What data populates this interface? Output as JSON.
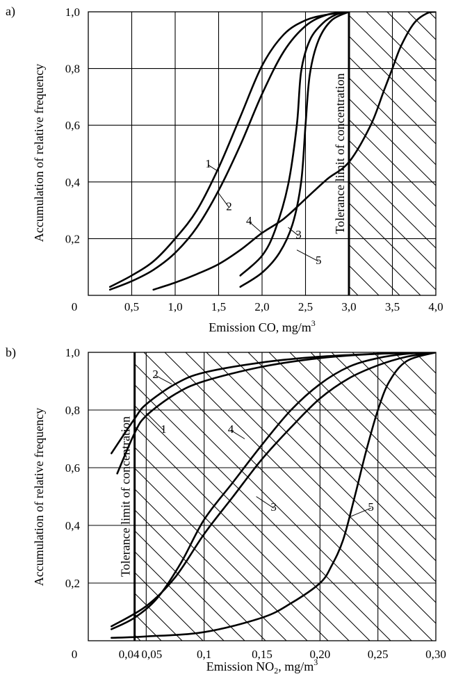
{
  "chart_data": [
    {
      "panel_label": "a)",
      "type": "line",
      "xlabel_main": "Emission CO, mg/m",
      "xlabel_sup": "3",
      "xlabel_sub": "",
      "xlabel_tail": "",
      "ylabel": "Accumulation of relative frequency",
      "origin_label": "0",
      "xlim": [
        0.0,
        4.0
      ],
      "ylim": [
        0.0,
        1.0
      ],
      "x_ticks": [
        {
          "v": 0.5,
          "t": "0,5"
        },
        {
          "v": 1.0,
          "t": "1,0"
        },
        {
          "v": 1.5,
          "t": "1,5"
        },
        {
          "v": 2.0,
          "t": "2,0"
        },
        {
          "v": 2.5,
          "t": "2,5"
        },
        {
          "v": 3.0,
          "t": "3,0"
        },
        {
          "v": 3.5,
          "t": "3,5"
        },
        {
          "v": 4.0,
          "t": "4,0"
        }
      ],
      "y_ticks": [
        {
          "v": 0.2,
          "t": "0,2"
        },
        {
          "v": 0.4,
          "t": "0,4"
        },
        {
          "v": 0.6,
          "t": "0,6"
        },
        {
          "v": 0.8,
          "t": "0,8"
        },
        {
          "v": 1.0,
          "t": "1,0"
        }
      ],
      "grid": true,
      "tolerance_limit": {
        "x": 3.0,
        "label": "Tolerance limit of concentration",
        "hatch_side": "right"
      },
      "series": [
        {
          "name": "1",
          "points": [
            [
              0.25,
              0.03
            ],
            [
              0.5,
              0.07
            ],
            [
              0.75,
              0.12
            ],
            [
              1.0,
              0.2
            ],
            [
              1.25,
              0.3
            ],
            [
              1.5,
              0.45
            ],
            [
              1.75,
              0.63
            ],
            [
              2.0,
              0.81
            ],
            [
              2.25,
              0.92
            ],
            [
              2.5,
              0.97
            ],
            [
              2.75,
              0.99
            ],
            [
              3.0,
              1.0
            ]
          ],
          "label": {
            "x": 1.38,
            "y": 0.46
          },
          "anchor": {
            "x": 1.48,
            "y": 0.44
          }
        },
        {
          "name": "2",
          "points": [
            [
              0.25,
              0.02
            ],
            [
              0.5,
              0.05
            ],
            [
              0.75,
              0.09
            ],
            [
              1.0,
              0.15
            ],
            [
              1.25,
              0.24
            ],
            [
              1.5,
              0.37
            ],
            [
              1.75,
              0.53
            ],
            [
              2.0,
              0.71
            ],
            [
              2.25,
              0.86
            ],
            [
              2.5,
              0.95
            ],
            [
              2.75,
              0.99
            ],
            [
              3.0,
              1.0
            ]
          ],
          "label": {
            "x": 1.62,
            "y": 0.31
          },
          "anchor": {
            "x": 1.5,
            "y": 0.36
          }
        },
        {
          "name": "3",
          "points": [
            [
              1.75,
              0.03
            ],
            [
              2.0,
              0.08
            ],
            [
              2.2,
              0.15
            ],
            [
              2.35,
              0.25
            ],
            [
              2.45,
              0.4
            ],
            [
              2.5,
              0.6
            ],
            [
              2.55,
              0.78
            ],
            [
              2.65,
              0.9
            ],
            [
              2.8,
              0.97
            ],
            [
              3.0,
              1.0
            ]
          ],
          "label": {
            "x": 2.42,
            "y": 0.21
          },
          "anchor": {
            "x": 2.3,
            "y": 0.24
          }
        },
        {
          "name": "4",
          "points": [
            [
              1.75,
              0.07
            ],
            [
              2.0,
              0.14
            ],
            [
              2.15,
              0.23
            ],
            [
              2.3,
              0.39
            ],
            [
              2.4,
              0.6
            ],
            [
              2.45,
              0.79
            ],
            [
              2.55,
              0.9
            ],
            [
              2.7,
              0.96
            ],
            [
              2.85,
              0.99
            ],
            [
              3.0,
              1.0
            ]
          ],
          "label": {
            "x": 1.85,
            "y": 0.26
          },
          "anchor": {
            "x": 2.0,
            "y": 0.22
          }
        },
        {
          "name": "5",
          "points": [
            [
              0.75,
              0.02
            ],
            [
              1.0,
              0.045
            ],
            [
              1.25,
              0.075
            ],
            [
              1.5,
              0.11
            ],
            [
              1.75,
              0.16
            ],
            [
              2.0,
              0.22
            ],
            [
              2.25,
              0.27
            ],
            [
              2.5,
              0.34
            ],
            [
              2.75,
              0.41
            ],
            [
              3.0,
              0.47
            ],
            [
              3.25,
              0.6
            ],
            [
              3.4,
              0.72
            ],
            [
              3.5,
              0.8
            ],
            [
              3.6,
              0.88
            ],
            [
              3.75,
              0.96
            ],
            [
              3.9,
              0.995
            ],
            [
              4.0,
              1.0
            ]
          ],
          "label": {
            "x": 2.65,
            "y": 0.12
          },
          "anchor": {
            "x": 2.4,
            "y": 0.16
          }
        }
      ]
    },
    {
      "panel_label": "b)",
      "type": "line",
      "xlabel_main": "Emission NO",
      "xlabel_sup": "3",
      "xlabel_sub": "2",
      "xlabel_tail": ", mg/m",
      "ylabel": "Accumulation of relative frequency",
      "origin_label": "0",
      "xlim": [
        0.0,
        0.3
      ],
      "ylim": [
        0.0,
        1.0
      ],
      "x_ticks": [
        {
          "v": 0.04,
          "t": "0,04"
        },
        {
          "v": 0.05,
          "t": "0,05"
        },
        {
          "v": 0.1,
          "t": "0,1"
        },
        {
          "v": 0.15,
          "t": "0,15"
        },
        {
          "v": 0.2,
          "t": "0,20"
        },
        {
          "v": 0.25,
          "t": "0,25"
        },
        {
          "v": 0.3,
          "t": "0,30"
        }
      ],
      "y_ticks": [
        {
          "v": 0.2,
          "t": "0,2"
        },
        {
          "v": 0.4,
          "t": "0,4"
        },
        {
          "v": 0.6,
          "t": "0,6"
        },
        {
          "v": 0.8,
          "t": "0,8"
        },
        {
          "v": 1.0,
          "t": "1,0"
        }
      ],
      "grid": true,
      "tolerance_limit": {
        "x": 0.04,
        "label": "Tolerance limit of concentration",
        "hatch_side": "right"
      },
      "series": [
        {
          "name": "1",
          "points": [
            [
              0.025,
              0.58
            ],
            [
              0.04,
              0.72
            ],
            [
              0.05,
              0.78
            ],
            [
              0.075,
              0.855
            ],
            [
              0.1,
              0.9
            ],
            [
              0.15,
              0.95
            ],
            [
              0.2,
              0.98
            ],
            [
              0.25,
              0.995
            ],
            [
              0.3,
              1.0
            ]
          ],
          "label": {
            "x": 0.065,
            "y": 0.73
          },
          "anchor": {
            "x": 0.05,
            "y": 0.79
          }
        },
        {
          "name": "2",
          "points": [
            [
              0.02,
              0.65
            ],
            [
              0.04,
              0.77
            ],
            [
              0.05,
              0.82
            ],
            [
              0.075,
              0.89
            ],
            [
              0.1,
              0.93
            ],
            [
              0.15,
              0.965
            ],
            [
              0.2,
              0.985
            ],
            [
              0.25,
              0.995
            ],
            [
              0.3,
              1.0
            ]
          ],
          "label": {
            "x": 0.058,
            "y": 0.92
          },
          "anchor": {
            "x": 0.072,
            "y": 0.89
          }
        },
        {
          "name": "3",
          "points": [
            [
              0.02,
              0.05
            ],
            [
              0.05,
              0.12
            ],
            [
              0.075,
              0.22
            ],
            [
              0.1,
              0.37
            ],
            [
              0.125,
              0.5
            ],
            [
              0.15,
              0.63
            ],
            [
              0.175,
              0.74
            ],
            [
              0.2,
              0.84
            ],
            [
              0.225,
              0.91
            ],
            [
              0.25,
              0.955
            ],
            [
              0.275,
              0.985
            ],
            [
              0.3,
              1.0
            ]
          ],
          "label": {
            "x": 0.16,
            "y": 0.46
          },
          "anchor": {
            "x": 0.145,
            "y": 0.5
          }
        },
        {
          "name": "4",
          "points": [
            [
              0.02,
              0.04
            ],
            [
              0.04,
              0.08
            ],
            [
              0.06,
              0.15
            ],
            [
              0.08,
              0.27
            ],
            [
              0.1,
              0.42
            ],
            [
              0.125,
              0.55
            ],
            [
              0.15,
              0.68
            ],
            [
              0.175,
              0.8
            ],
            [
              0.2,
              0.89
            ],
            [
              0.225,
              0.95
            ],
            [
              0.25,
              0.98
            ],
            [
              0.275,
              0.995
            ],
            [
              0.3,
              1.0
            ]
          ],
          "label": {
            "x": 0.123,
            "y": 0.73
          },
          "anchor": {
            "x": 0.135,
            "y": 0.7
          }
        },
        {
          "name": "5",
          "points": [
            [
              0.02,
              0.01
            ],
            [
              0.05,
              0.015
            ],
            [
              0.1,
              0.03
            ],
            [
              0.15,
              0.08
            ],
            [
              0.175,
              0.13
            ],
            [
              0.2,
              0.2
            ],
            [
              0.21,
              0.26
            ],
            [
              0.22,
              0.35
            ],
            [
              0.23,
              0.5
            ],
            [
              0.24,
              0.66
            ],
            [
              0.25,
              0.8
            ],
            [
              0.26,
              0.9
            ],
            [
              0.275,
              0.97
            ],
            [
              0.3,
              1.0
            ]
          ],
          "label": {
            "x": 0.244,
            "y": 0.46
          },
          "anchor": {
            "x": 0.226,
            "y": 0.43
          }
        }
      ]
    }
  ]
}
